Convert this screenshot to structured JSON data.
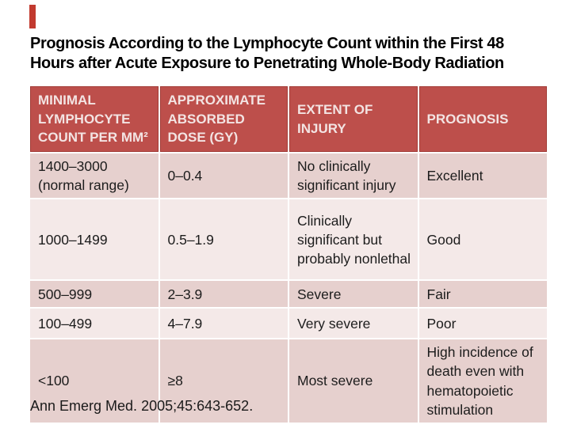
{
  "slide": {
    "title": {
      "line1": "Prognosis According to the Lymphocyte Count within the First 48",
      "line2": "Hours after Acute Exposure to Penetrating Whole-Body Radiation"
    },
    "citation": "Ann Emerg Med. 2005;45:643-652.",
    "colors": {
      "accent_bar": "#c23a2f",
      "table_header_bg": "#bd4f4b",
      "table_header_text": "#f3e4e3",
      "row_band_dark": "#e6d0ce",
      "row_band_light": "#f4e9e8",
      "title_text": "#000000",
      "body_text": "#1c1c1c"
    }
  },
  "table": {
    "headers": [
      "MINIMAL LYMPHOCYTE COUNT PER MM²",
      "APPROXIMATE ABSORBED DOSE (GY)",
      "EXTENT OF INJURY",
      "PROGNOSIS"
    ],
    "rows": [
      {
        "cells": [
          "1400–3000 (normal range)",
          "0–0.4",
          "No clinically significant injury",
          "Excellent"
        ]
      },
      {
        "cells": [
          "1000–1499",
          "0.5–1.9",
          "Clinically significant but probably nonlethal",
          "Good"
        ]
      },
      {
        "cells": [
          "500–999",
          "2–3.9",
          "Severe",
          "Fair"
        ]
      },
      {
        "cells": [
          "100–499",
          "4–7.9",
          "Very severe",
          "Poor"
        ]
      },
      {
        "cells": [
          "<100",
          "≥8",
          "Most severe",
          "High incidence of death even with hematopoietic stimulation"
        ]
      }
    ]
  }
}
